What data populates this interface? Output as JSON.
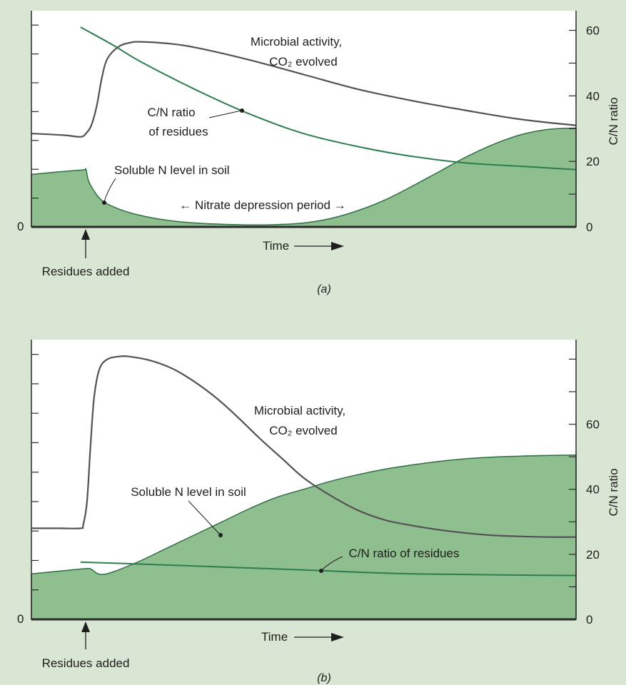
{
  "colors": {
    "background": "#d9e6d3",
    "plot_background": "#ffffff",
    "soluble_n_fill": "#8fbe8f",
    "soluble_n_edge": "#2f6e45",
    "cn_ratio_line": "#2e7d4f",
    "microbial_line": "#555055",
    "text": "#1e1e1e"
  },
  "chart_data": [
    {
      "panel": "(a)",
      "type": "area",
      "xlabel": "Time",
      "xlabel_arrow": "→",
      "ylabel_left_tick": "0",
      "y2label": "C/N ratio",
      "y2_ticks": [
        0,
        20,
        40,
        60
      ],
      "y2lim": [
        0,
        66
      ],
      "xlim": [
        0,
        100
      ],
      "grid": false,
      "residues_added_label": "Residues added",
      "residues_added_x": 10,
      "series": [
        {
          "name": "Microbial activity, CO2 evolved",
          "kind": "line",
          "x": [
            0,
            6,
            9,
            10,
            11,
            12,
            13,
            14,
            16,
            18,
            20,
            25,
            30,
            40,
            50,
            60,
            70,
            80,
            90,
            100
          ],
          "y": [
            28.5,
            28,
            27.5,
            28.5,
            31,
            37,
            46,
            51.5,
            55,
            56.2,
            56.5,
            56,
            54.8,
            51,
            46.5,
            42,
            38.5,
            35.5,
            32.8,
            31
          ]
        },
        {
          "name": "C/N ratio of residues",
          "kind": "line",
          "x": [
            9,
            15,
            20,
            30,
            40,
            50,
            60,
            70,
            80,
            90,
            100
          ],
          "y": [
            61,
            55.5,
            50.5,
            42,
            34.5,
            28.5,
            24.5,
            21.5,
            19.5,
            18.5,
            17.5
          ]
        },
        {
          "name": "Soluble N level in soil",
          "kind": "area",
          "x": [
            0,
            5,
            9.5,
            10,
            10.5,
            11.5,
            13,
            16,
            20,
            25,
            30,
            35,
            40,
            45,
            50,
            55,
            60,
            65,
            70,
            75,
            80,
            85,
            90,
            95,
            100
          ],
          "y": [
            16,
            16.8,
            17.4,
            17.6,
            14,
            11,
            8,
            5.5,
            3.5,
            2,
            1.2,
            0.8,
            0.6,
            0.7,
            1.2,
            2.6,
            5,
            8.3,
            12.5,
            17,
            21.5,
            25.3,
            28.2,
            29.8,
            30.2
          ]
        }
      ],
      "annotations": [
        {
          "text": "Microbial activity,",
          "line2": "CO₂ evolved"
        },
        {
          "text": "C/N ratio",
          "line2": "of residues"
        },
        {
          "text": "Soluble N level in soil"
        },
        {
          "text": "← Nitrate depression period →"
        }
      ]
    },
    {
      "panel": "(b)",
      "type": "area",
      "xlabel": "Time",
      "xlabel_arrow": "→",
      "ylabel_left_tick": "0",
      "y2label": "C/N ratio",
      "y2_ticks": [
        0,
        20,
        40,
        60
      ],
      "y2lim": [
        0,
        86
      ],
      "xlim": [
        0,
        100
      ],
      "grid": false,
      "residues_added_label": "Residues added",
      "residues_added_x": 10,
      "series": [
        {
          "name": "Microbial activity, CO2 evolved",
          "kind": "line",
          "x": [
            0,
            5,
            9,
            9.5,
            10.2,
            10.8,
            11.5,
            12.5,
            14,
            16,
            18,
            22,
            26,
            30,
            34,
            38,
            42,
            46,
            50,
            55,
            60,
            65,
            70,
            75,
            80,
            85,
            90,
            95,
            100
          ],
          "y": [
            28,
            28,
            28,
            29,
            36,
            52,
            68,
            77,
            80,
            80.8,
            80.8,
            79.5,
            77,
            73,
            68,
            62,
            55.5,
            49.5,
            43.5,
            38,
            33.5,
            30.5,
            28.8,
            27.5,
            26.5,
            25.8,
            25.5,
            25.3,
            25.3
          ]
        },
        {
          "name": "C/N ratio of residues",
          "kind": "line",
          "x": [
            9,
            20,
            30,
            40,
            50,
            60,
            70,
            80,
            90,
            100
          ],
          "y": [
            17.6,
            17,
            16.4,
            15.8,
            15.2,
            14.5,
            14,
            13.8,
            13.6,
            13.5
          ]
        },
        {
          "name": "Soluble N level in soil",
          "kind": "area",
          "x": [
            0,
            5,
            10,
            11,
            12,
            13,
            15,
            20,
            25,
            30,
            35,
            40,
            45,
            50,
            55,
            60,
            65,
            70,
            75,
            80,
            85,
            90,
            95,
            100
          ],
          "y": [
            14,
            14.8,
            15.6,
            15.4,
            14.2,
            13.8,
            14.6,
            18,
            22,
            26,
            30,
            34,
            37.5,
            40,
            42.5,
            44.5,
            46.2,
            47.5,
            48.6,
            49.4,
            49.9,
            50.2,
            50.4,
            50.5
          ]
        }
      ],
      "annotations": [
        {
          "text": "Microbial activity,",
          "line2": "CO₂ evolved"
        },
        {
          "text": "Soluble N level in soil"
        },
        {
          "text": "C/N ratio of residues"
        }
      ]
    }
  ]
}
